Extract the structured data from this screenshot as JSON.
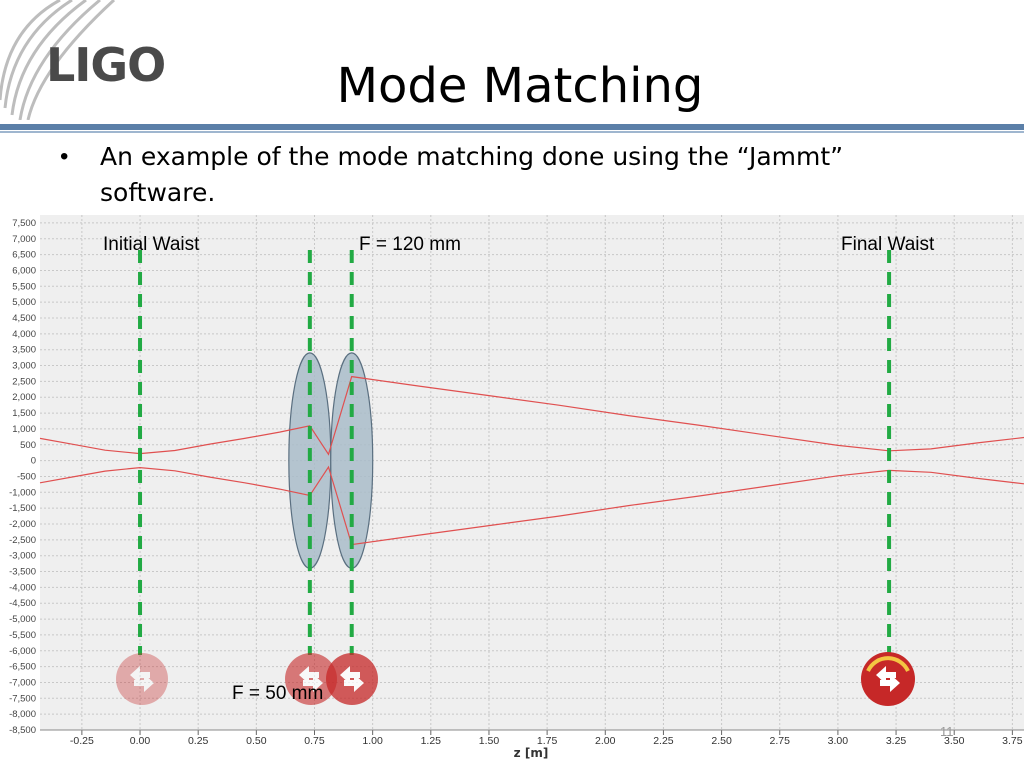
{
  "slide": {
    "logo_text": "LIGO",
    "title": "Mode Matching",
    "bullet_line1": "An example of the mode matching done using the “Jammt”",
    "bullet_line2": "software.",
    "page_number": "11"
  },
  "annotations": {
    "initial_waist": "Initial Waist",
    "f120": "F = 120 mm",
    "final_waist": "Final Waist",
    "f50": "F = 50 mm"
  },
  "chart_data": {
    "type": "line",
    "xlabel": "z [m]",
    "xlim": [
      -0.43,
      3.8
    ],
    "ylim": [
      -8500,
      7750
    ],
    "xticks": [
      "-0.25",
      "0.00",
      "0.25",
      "0.50",
      "0.75",
      "1.00",
      "1.25",
      "1.50",
      "1.75",
      "2.00",
      "2.25",
      "2.50",
      "2.75",
      "3.00",
      "3.25",
      "3.50",
      "3.75"
    ],
    "xtick_values": [
      -0.25,
      0,
      0.25,
      0.5,
      0.75,
      1.0,
      1.25,
      1.5,
      1.75,
      2.0,
      2.25,
      2.5,
      2.75,
      3.0,
      3.25,
      3.5,
      3.75
    ],
    "yticks": [
      "7,500",
      "7,000",
      "6,500",
      "6,000",
      "5,500",
      "5,000",
      "4,500",
      "4,000",
      "3,500",
      "3,000",
      "2,500",
      "2,000",
      "1,500",
      "1,000",
      "500",
      "0",
      "-500",
      "-1,000",
      "-1,500",
      "-2,000",
      "-2,500",
      "-3,000",
      "-3,500",
      "-4,000",
      "-4,500",
      "-5,000",
      "-5,500",
      "-6,000",
      "-6,500",
      "-7,000",
      "-7,500",
      "-8,000",
      "-8,500"
    ],
    "ytick_values": [
      7500,
      7000,
      6500,
      6000,
      5500,
      5000,
      4500,
      4000,
      3500,
      3000,
      2500,
      2000,
      1500,
      1000,
      500,
      0,
      -500,
      -1000,
      -1500,
      -2000,
      -2500,
      -3000,
      -3500,
      -4000,
      -4500,
      -5000,
      -5500,
      -6000,
      -6500,
      -7000,
      -7500,
      -8000,
      -8500
    ],
    "grid": true,
    "series": [
      {
        "color": "#e05050",
        "x": [
          -0.43,
          -0.3,
          -0.15,
          0.0,
          0.15,
          0.3,
          0.45,
          0.6,
          0.73,
          0.81,
          0.91,
          1.2,
          1.5,
          1.8,
          2.1,
          2.4,
          2.7,
          3.0,
          3.22,
          3.4,
          3.6,
          3.8
        ],
        "y": [
          700,
          530,
          330,
          220,
          320,
          520,
          700,
          900,
          1100,
          200,
          2650,
          2350,
          2050,
          1750,
          1420,
          1120,
          800,
          480,
          310,
          370,
          560,
          730
        ]
      },
      {
        "color": "#e05050",
        "x": [
          -0.43,
          -0.3,
          -0.15,
          0.0,
          0.15,
          0.3,
          0.45,
          0.6,
          0.73,
          0.81,
          0.91,
          1.2,
          1.5,
          1.8,
          2.1,
          2.4,
          2.7,
          3.0,
          3.22,
          3.4,
          3.6,
          3.8
        ],
        "y": [
          -700,
          -530,
          -330,
          -220,
          -320,
          -520,
          -700,
          -900,
          -1100,
          -200,
          -2650,
          -2350,
          -2050,
          -1750,
          -1420,
          -1120,
          -800,
          -480,
          -310,
          -370,
          -560,
          -730
        ]
      }
    ],
    "markers": [
      {
        "name": "initial-waist-marker",
        "x": 0.0
      },
      {
        "name": "lens-f50-marker",
        "x": 0.73
      },
      {
        "name": "lens-f120-marker",
        "x": 0.91
      },
      {
        "name": "final-waist-marker",
        "x": 3.22
      }
    ],
    "lenses": [
      {
        "name": "lens-f50",
        "x": 0.73,
        "half_height": 3400
      },
      {
        "name": "lens-f120",
        "x": 0.91,
        "half_height": 3400
      }
    ],
    "colors": {
      "grid": "#c8c8c8",
      "beam": "#e05050",
      "marker": "#22aa44",
      "lens_fill": "#a9bcc9",
      "lens_stroke": "#5a6f80",
      "plot_bg": "#efefef",
      "handle_red": "#c62828"
    }
  }
}
